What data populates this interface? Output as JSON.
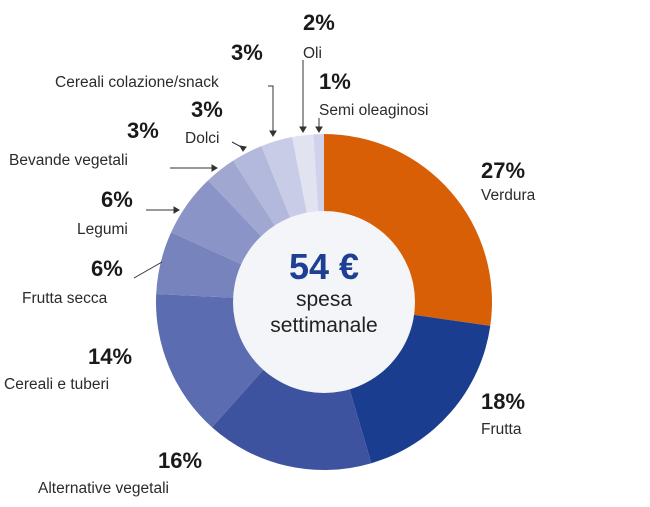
{
  "chart_data": {
    "type": "pie",
    "variant": "donut",
    "title": "",
    "center_label": {
      "value": "54 €",
      "line1": "spesa",
      "line2": "settimanale"
    },
    "categories": [
      "Verdura",
      "Frutta",
      "Alternative vegetali",
      "Cereali e tuberi",
      "Frutta secca",
      "Legumi",
      "Bevande vegetali",
      "Dolci",
      "Cereali colazione/snack",
      "Oli",
      "Semi oleaginosi"
    ],
    "values": [
      27,
      18,
      16,
      14,
      6,
      6,
      3,
      3,
      3,
      2,
      1
    ],
    "unit": "%",
    "colors": [
      "#d95f07",
      "#1b3d8f",
      "#3e53a0",
      "#5c6cb0",
      "#7683bd",
      "#8a94c6",
      "#a0a8d2",
      "#b3b9dc",
      "#c8cce6",
      "#e1e3f1",
      "#cfd2ea"
    ],
    "start_angle_deg": 0,
    "direction": "clockwise"
  },
  "labels": [
    {
      "pct": "27%",
      "name": "Verdura"
    },
    {
      "pct": "18%",
      "name": "Frutta"
    },
    {
      "pct": "16%",
      "name": "Alternative vegetali"
    },
    {
      "pct": "14%",
      "name": "Cereali e tuberi"
    },
    {
      "pct": "6%",
      "name": "Frutta secca"
    },
    {
      "pct": "6%",
      "name": "Legumi"
    },
    {
      "pct": "3%",
      "name": "Bevande vegetali"
    },
    {
      "pct": "3%",
      "name": "Dolci"
    },
    {
      "pct": "3%",
      "name": "Cereali colazione/snack"
    },
    {
      "pct": "2%",
      "name": "Oli"
    },
    {
      "pct": "1%",
      "name": "Semi oleaginosi"
    }
  ],
  "center": {
    "amount": "54 €",
    "line1": "spesa",
    "line2": "settimanale"
  }
}
